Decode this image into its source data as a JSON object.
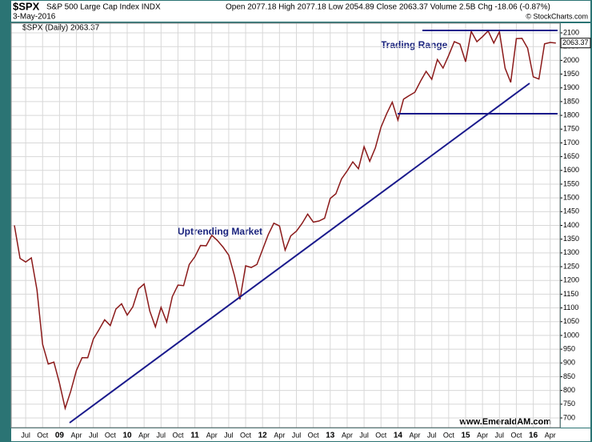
{
  "chart_data": {
    "type": "line",
    "symbol": "$SPX",
    "title": "S&P 500 Large Cap Index INDX",
    "date": "3-May-2016",
    "quote": "Open 2077.18 High 2077.18 Low 2054.89 Close 2063.37 Volume 2.5B Chg -18.06 (-0.87%)",
    "credit": "© StockCharts.com",
    "legend_label": "$SPX (Daily) 2063.37",
    "last_label": "2063.37",
    "annotations": [
      "Trading Range",
      "Uptrending Market"
    ],
    "watermark": "www.EmeraldAM.com",
    "categories": [
      null,
      null,
      "Jul",
      null,
      null,
      "Oct",
      null,
      null,
      "09",
      null,
      null,
      "Apr",
      null,
      null,
      "Jul",
      null,
      null,
      "Oct",
      null,
      null,
      "10",
      null,
      null,
      "Apr",
      null,
      null,
      "Jul",
      null,
      null,
      "Oct",
      null,
      null,
      "11",
      null,
      null,
      "Apr",
      null,
      null,
      "Jul",
      null,
      null,
      "Oct",
      null,
      null,
      "12",
      null,
      null,
      "Apr",
      null,
      null,
      "Jul",
      null,
      null,
      "Oct",
      null,
      null,
      "13",
      null,
      null,
      "Apr",
      null,
      null,
      "Jul",
      null,
      null,
      "Oct",
      null,
      null,
      "14",
      null,
      null,
      "Apr",
      null,
      null,
      "Jul",
      null,
      null,
      "Oct",
      null,
      null,
      "15",
      null,
      null,
      "Apr",
      null,
      null,
      "Jul",
      null,
      null,
      "Oct",
      null,
      null,
      "16",
      null,
      null,
      "Apr",
      null
    ],
    "series": [
      {
        "name": "$SPX",
        "color": "#8b1a1a",
        "values": [
          1400,
          1280,
          1267,
          1282,
          1166,
          968,
          896,
          903,
          826,
          735,
          798,
          873,
          919,
          919,
          987,
          1021,
          1057,
          1036,
          1096,
          1115,
          1074,
          1104,
          1169,
          1187,
          1089,
          1031,
          1102,
          1049,
          1141,
          1183,
          1181,
          1258,
          1286,
          1327,
          1326,
          1364,
          1345,
          1321,
          1292,
          1219,
          1131,
          1253,
          1247,
          1258,
          1312,
          1366,
          1408,
          1398,
          1310,
          1362,
          1379,
          1407,
          1441,
          1412,
          1416,
          1426,
          1498,
          1515,
          1569,
          1598,
          1631,
          1606,
          1686,
          1633,
          1682,
          1757,
          1806,
          1848,
          1783,
          1859,
          1872,
          1884,
          1924,
          1960,
          1931,
          2003,
          1972,
          2018,
          2068,
          2059,
          1995,
          2105,
          2068,
          2086,
          2107,
          2063,
          2104,
          1972,
          1920,
          2079,
          2080,
          2044,
          1940,
          1932,
          2060,
          2065,
          2063
        ]
      }
    ],
    "ylim": [
      665,
      2135
    ],
    "yticks": [
      700,
      750,
      800,
      850,
      900,
      950,
      1000,
      1050,
      1100,
      1150,
      1200,
      1250,
      1300,
      1350,
      1400,
      1450,
      1500,
      1550,
      1600,
      1650,
      1700,
      1750,
      1800,
      1850,
      1900,
      1950,
      2000,
      2050,
      2100
    ],
    "grid": true
  }
}
